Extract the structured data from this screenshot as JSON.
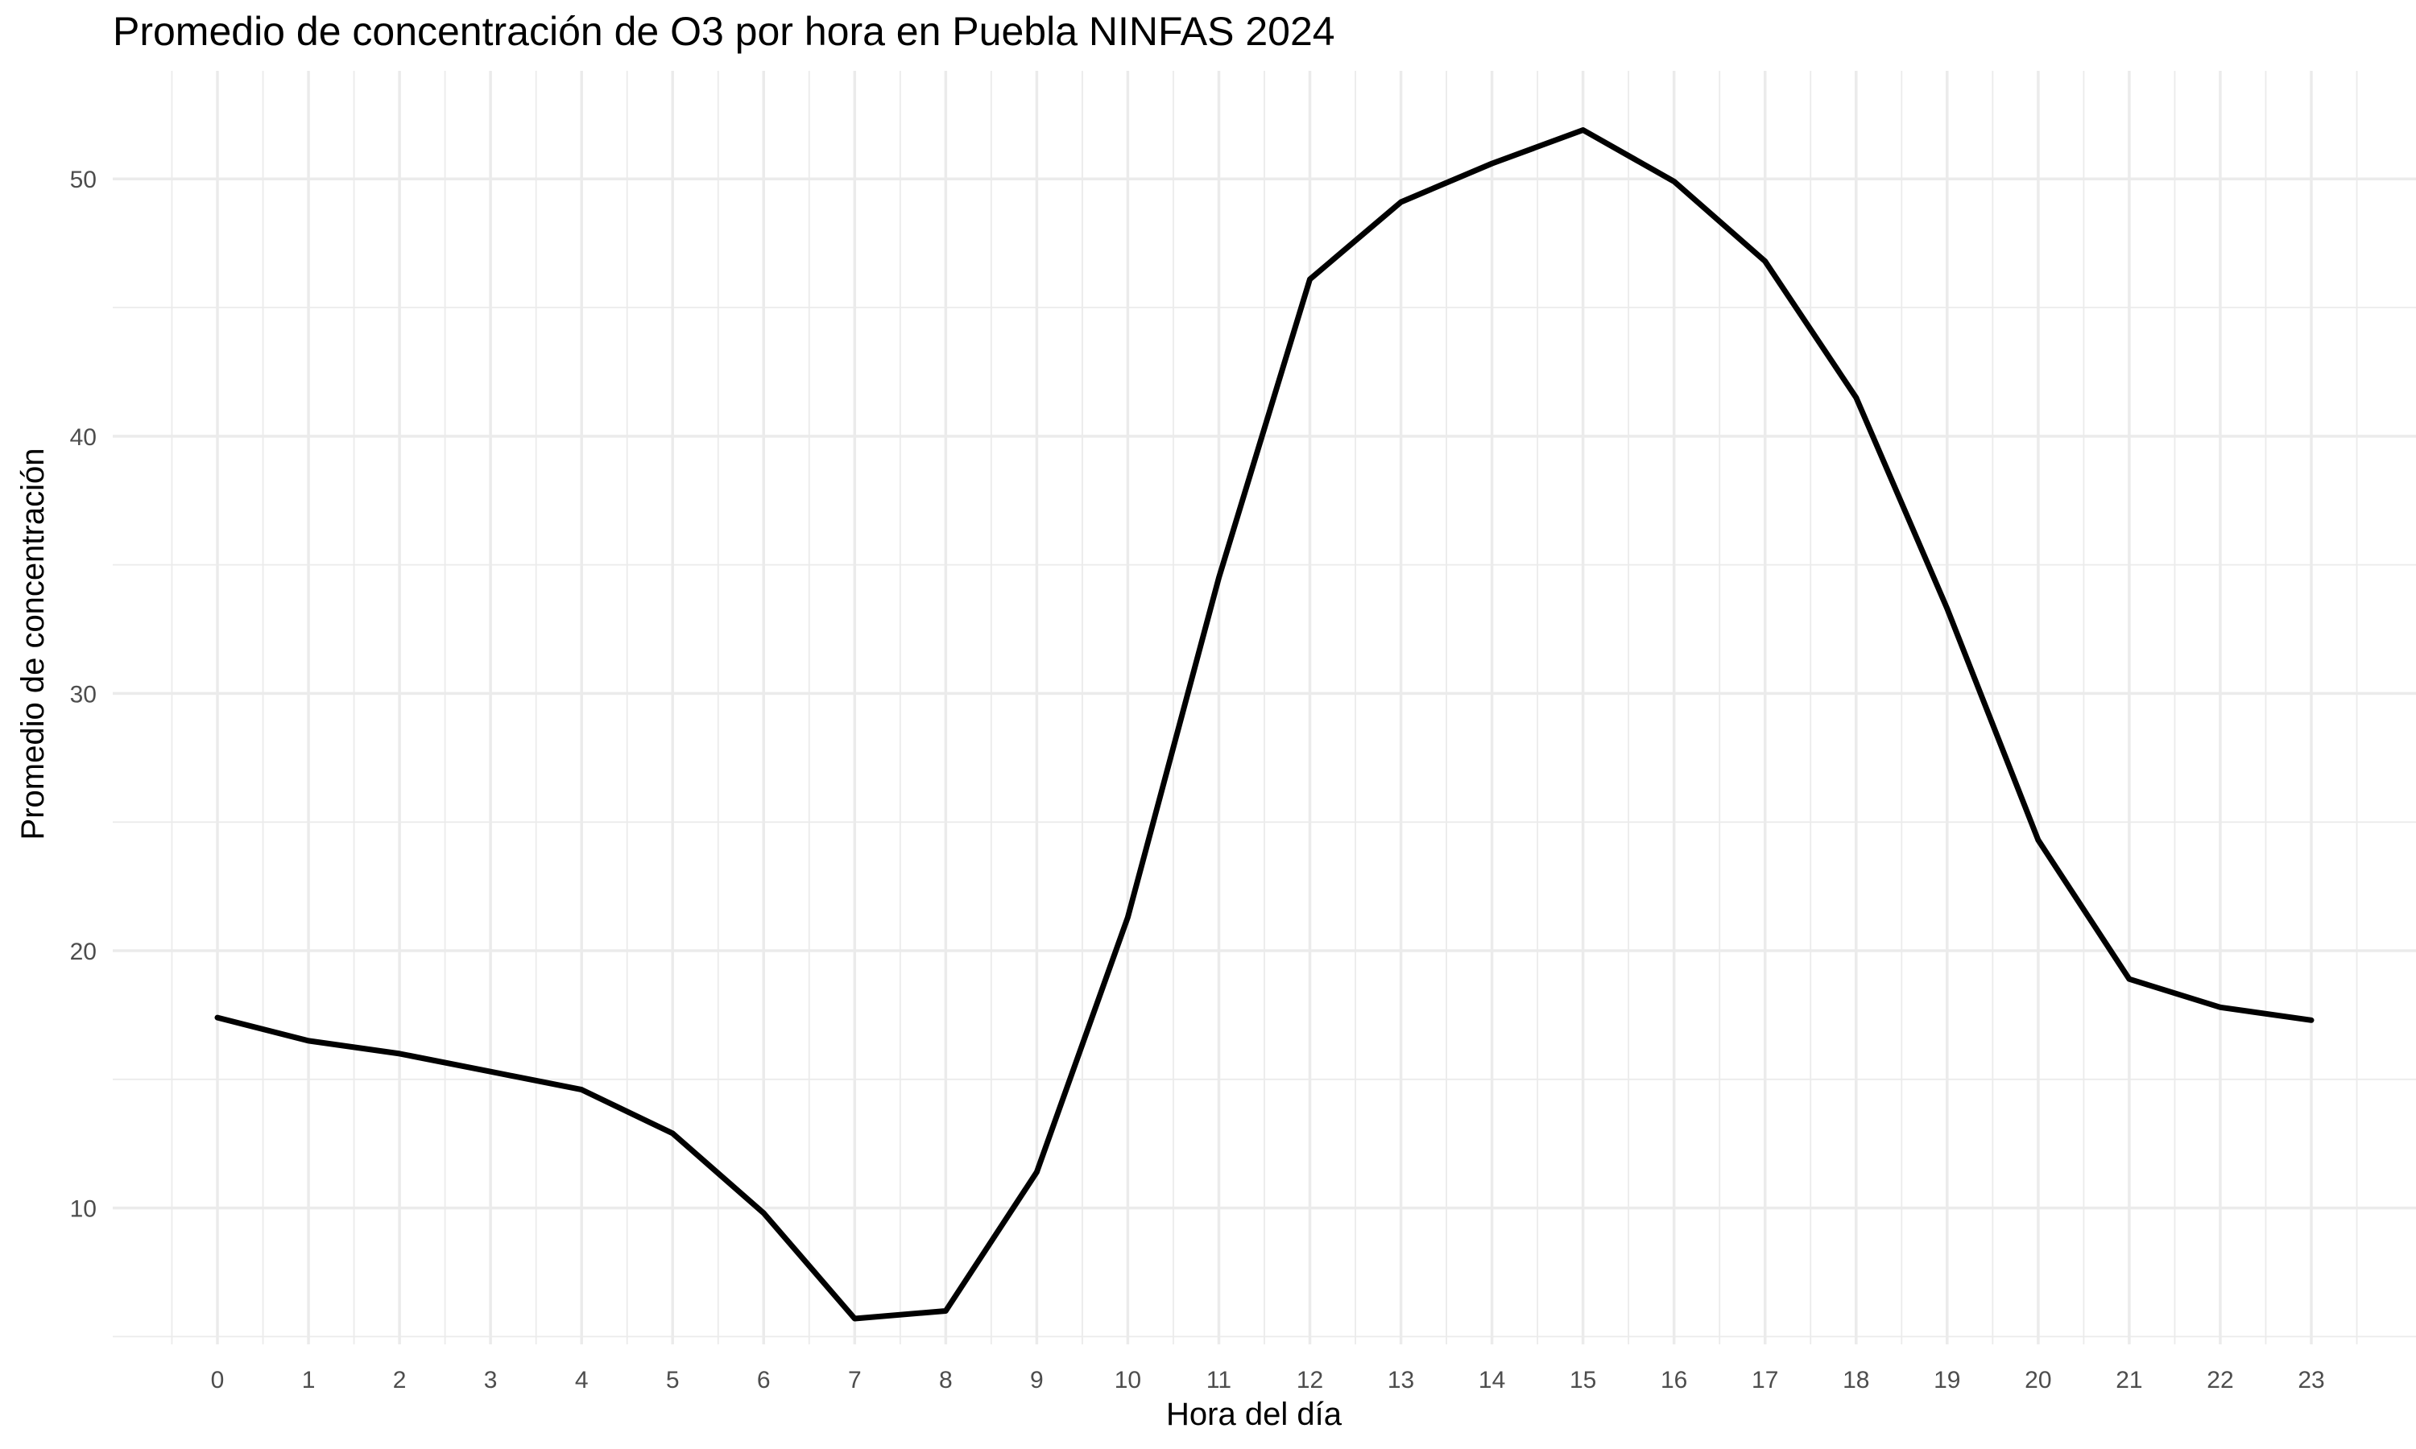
{
  "chart_data": {
    "type": "line",
    "title": "Promedio de concentración de O3 por hora en Puebla NINFAS 2024",
    "xlabel": "Hora del día",
    "ylabel": "Promedio de concentración",
    "x": [
      0,
      1,
      2,
      3,
      4,
      5,
      6,
      7,
      8,
      9,
      10,
      11,
      12,
      13,
      14,
      15,
      16,
      17,
      18,
      19,
      20,
      21,
      22,
      23
    ],
    "x_tick_labels": [
      "0",
      "1",
      "2",
      "3",
      "4",
      "5",
      "6",
      "7",
      "8",
      "9",
      "10",
      "11",
      "12",
      "13",
      "14",
      "15",
      "16",
      "17",
      "18",
      "19",
      "20",
      "21",
      "22",
      "23"
    ],
    "series": [
      {
        "values": [
          17.4,
          16.5,
          16.0,
          15.3,
          14.6,
          12.9,
          9.8,
          5.7,
          6.0,
          11.4,
          21.3,
          34.5,
          46.1,
          49.1,
          50.6,
          51.9,
          49.9,
          46.8,
          41.5,
          33.3,
          24.3,
          18.9,
          17.8,
          17.3
        ]
      }
    ],
    "y_ticks": [
      10,
      20,
      30,
      40,
      50
    ],
    "y_tick_labels": [
      "10",
      "20",
      "30",
      "40",
      "50"
    ],
    "xlim": [
      -1.15,
      24.15
    ],
    "ylim": [
      4.7,
      54.2
    ],
    "grid": true,
    "line_color": "#000000",
    "grid_color": "#ebebeb"
  }
}
